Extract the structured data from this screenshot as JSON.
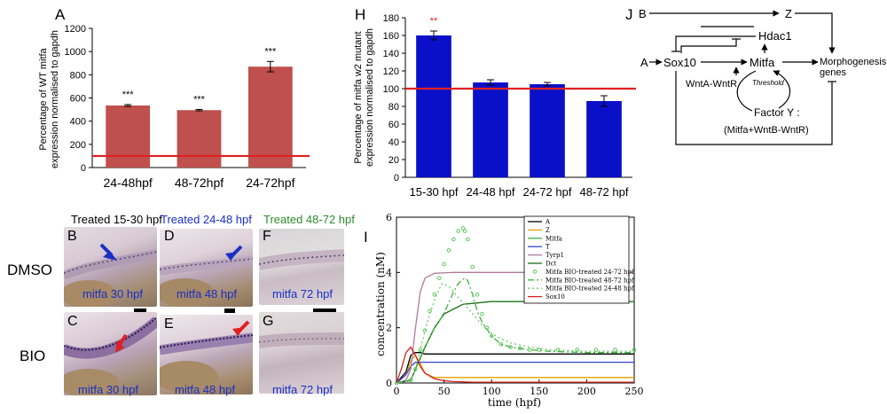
{
  "panelA": {
    "letter": "A",
    "ylabel_lines": [
      "Percentage of WT mitfa",
      "expression normalised to gapdh"
    ],
    "chart_data": {
      "type": "bar",
      "categories": [
        "24-48hpf",
        "48-72hpf",
        "24-72hpf"
      ],
      "values": [
        535,
        495,
        870
      ],
      "errors": [
        8,
        6,
        45
      ],
      "significance": [
        "***",
        "***",
        "***"
      ],
      "reference_line": 100,
      "ylim": [
        0,
        1200
      ],
      "yticks": [
        "0",
        "200",
        "400",
        "600",
        "800",
        "1000",
        "1200"
      ],
      "bar_color": "#c0504d",
      "ref_color": "#e02020"
    }
  },
  "panelH": {
    "letter": "H",
    "ylabel_lines": [
      "Percentage of mitfa w2 mutant",
      "expression normalised to gapdh"
    ],
    "chart_data": {
      "type": "bar",
      "categories": [
        "15-30 hpf",
        "24-48 hpf",
        "24-72 hpf",
        "48-72 hpf"
      ],
      "values": [
        160,
        107,
        105,
        86
      ],
      "errors": [
        5,
        3,
        2,
        6
      ],
      "significance": [
        "**",
        "",
        "",
        ""
      ],
      "reference_line": 100,
      "ylim": [
        0,
        180
      ],
      "yticks": [
        "0",
        "20",
        "40",
        "60",
        "80",
        "100",
        "120",
        "140",
        "160",
        "180"
      ],
      "bar_color": "#0a10c8",
      "ref_color": "#e02020"
    }
  },
  "panelJ": {
    "letter": "J",
    "nodes": {
      "B": "B",
      "Z": "Z",
      "A": "A",
      "Hdac1": "Hdac1",
      "Sox10": "Sox10",
      "Mitfa": "Mitfa",
      "morph_line1": "Morphogenesis",
      "morph_line2": "genes",
      "wnt": "WntA-WntR",
      "threshold": "Threshold",
      "factor_line1": "Factor Y :",
      "factor_line2": "(Mitfa+WntB-WntR)"
    }
  },
  "photos": {
    "headers": [
      {
        "text": "Treated 15-30 hpf",
        "color": "#000000"
      },
      {
        "text": "Treated 24-48 hpf",
        "color": "#1a2fc6"
      },
      {
        "text": "Treated 48-72 hpf",
        "color": "#2e8b2e"
      }
    ],
    "rows": [
      "DMSO",
      "BIO"
    ],
    "letters": [
      "B",
      "D",
      "F",
      "C",
      "E",
      "G"
    ],
    "captions": [
      "mitfa 30 hpf",
      "mitfa 48 hpf",
      "mitfa 72 hpf",
      "mitfa 30 hpf",
      "mitfa 48 hpf",
      "mitfa 72 hpf"
    ]
  },
  "panelI": {
    "letter": "I",
    "chart_data": {
      "type": "line",
      "xlabel": "time (hpf)",
      "ylabel": "concentration (nM)",
      "xlim": [
        0,
        250
      ],
      "ylim": [
        0,
        6
      ],
      "xticks": [
        "0",
        "50",
        "100",
        "150",
        "200",
        "250"
      ],
      "yticks": [
        "0",
        "2",
        "4",
        "6"
      ],
      "legend_position": "top-right",
      "series": [
        {
          "name": "A",
          "color": "#000000",
          "style": "solid",
          "x": [
            0,
            10,
            15,
            20,
            25,
            30,
            40,
            60,
            100,
            250
          ],
          "y": [
            0,
            0.4,
            1.0,
            1.1,
            1.1,
            1.05,
            1.05,
            1.05,
            1.05,
            1.05
          ]
        },
        {
          "name": "Z",
          "color": "#e0a000",
          "style": "solid",
          "x": [
            0,
            10,
            15,
            20,
            25,
            30,
            40,
            60,
            100,
            250
          ],
          "y": [
            0,
            0.3,
            0.8,
            1.0,
            0.7,
            0.35,
            0.2,
            0.2,
            0.2,
            0.2
          ]
        },
        {
          "name": "Mitfa",
          "color": "#3cb43c",
          "style": "solid",
          "x": [
            0,
            15,
            20,
            30,
            40,
            50,
            70,
            100,
            150,
            250
          ],
          "y": [
            0,
            0.1,
            0.5,
            1.3,
            2.0,
            2.5,
            2.85,
            2.95,
            2.95,
            2.95
          ]
        },
        {
          "name": "T",
          "color": "#3246d2",
          "style": "solid",
          "x": [
            0,
            10,
            15,
            20,
            30,
            50,
            100,
            250
          ],
          "y": [
            0,
            0.3,
            0.6,
            0.75,
            0.75,
            0.75,
            0.75,
            0.75
          ]
        },
        {
          "name": "Tyrp1",
          "color": "#b07a9a",
          "style": "solid",
          "x": [
            0,
            10,
            15,
            20,
            25,
            30,
            40,
            60,
            100,
            250
          ],
          "y": [
            0,
            0.1,
            0.5,
            2.0,
            3.3,
            3.8,
            3.97,
            4.0,
            4.0,
            4.0
          ]
        },
        {
          "name": "Dct",
          "color": "#1a6e1a",
          "style": "solid",
          "x": [
            0,
            15,
            20,
            30,
            40,
            50,
            70,
            100,
            150,
            250
          ],
          "y": [
            0,
            0.1,
            0.5,
            1.3,
            2.0,
            2.5,
            2.85,
            2.95,
            2.95,
            2.95
          ]
        },
        {
          "name": "Mitfa BIO-treated 24-72 hpf",
          "color": "#5cc85c",
          "style": "circles",
          "x": [
            0,
            15,
            20,
            25,
            30,
            35,
            40,
            45,
            50,
            55,
            60,
            65,
            70,
            72,
            75,
            80,
            85,
            90,
            95,
            100,
            110,
            120,
            130,
            140,
            150,
            170,
            190,
            210,
            230,
            250
          ],
          "y": [
            0,
            0.1,
            0.5,
            1.2,
            1.9,
            2.6,
            3.2,
            3.8,
            4.3,
            4.8,
            5.2,
            5.5,
            5.6,
            5.5,
            5.2,
            4.2,
            3.2,
            2.5,
            2.0,
            1.7,
            1.4,
            1.3,
            1.25,
            1.2,
            1.2,
            1.2,
            1.2,
            1.2,
            1.2,
            1.2
          ]
        },
        {
          "name": "Mitfa BIO-treated 48-72 hpf",
          "color": "#3cb43c",
          "style": "dashdot",
          "x": [
            0,
            15,
            20,
            30,
            40,
            48,
            55,
            60,
            65,
            70,
            72,
            75,
            80,
            85,
            90,
            100,
            110,
            120,
            140,
            160,
            200,
            250
          ],
          "y": [
            0,
            0.1,
            0.5,
            1.3,
            2.0,
            2.4,
            2.9,
            3.3,
            3.6,
            3.75,
            3.8,
            3.7,
            3.2,
            2.6,
            2.2,
            1.7,
            1.4,
            1.3,
            1.2,
            1.15,
            1.1,
            1.1
          ]
        },
        {
          "name": "Mitfa BIO-treated 24-48 hpf",
          "color": "#6cc86c",
          "style": "dotted",
          "x": [
            0,
            15,
            20,
            25,
            30,
            35,
            40,
            45,
            48,
            55,
            60,
            70,
            80,
            90,
            100,
            110,
            120,
            140,
            160,
            200,
            250
          ],
          "y": [
            0,
            0.1,
            0.5,
            1.2,
            1.9,
            2.5,
            3.0,
            3.4,
            3.6,
            3.5,
            3.3,
            2.9,
            2.5,
            2.1,
            1.8,
            1.6,
            1.45,
            1.3,
            1.2,
            1.15,
            1.15
          ]
        },
        {
          "name": "Sox10",
          "color": "#d82020",
          "style": "solid",
          "x": [
            0,
            5,
            10,
            15,
            20,
            25,
            30,
            40,
            50,
            60,
            80,
            100,
            150,
            250
          ],
          "y": [
            0,
            0.5,
            1.1,
            1.3,
            1.0,
            0.6,
            0.35,
            0.15,
            0.08,
            0.05,
            0.03,
            0.03,
            0.03,
            0.03
          ]
        }
      ]
    }
  }
}
